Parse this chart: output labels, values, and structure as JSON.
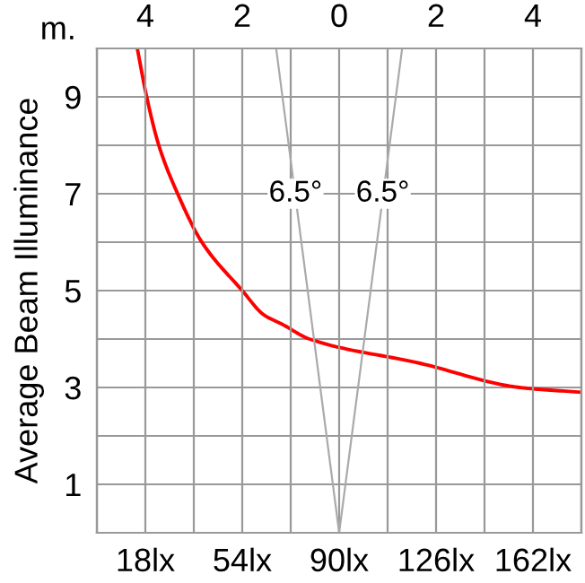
{
  "chart_data": {
    "type": "line",
    "ylabel": "Average Beam Illuminance",
    "x2label": "m.",
    "xlim": [
      0,
      180
    ],
    "xticks": [
      {
        "value": 18,
        "label": "18lx"
      },
      {
        "value": 54,
        "label": "54lx"
      },
      {
        "value": 90,
        "label": "90lx"
      },
      {
        "value": 126,
        "label": "126lx"
      },
      {
        "value": 162,
        "label": "162lx"
      }
    ],
    "x2lim": [
      -5,
      5
    ],
    "x2ticks": [
      {
        "value": -5,
        "label": null
      },
      {
        "value": -4,
        "label": "4"
      },
      {
        "value": -3,
        "label": null
      },
      {
        "value": -2,
        "label": "2"
      },
      {
        "value": -1,
        "label": null
      },
      {
        "value": 0,
        "label": "0"
      },
      {
        "value": 1,
        "label": null
      },
      {
        "value": 2,
        "label": "2"
      },
      {
        "value": 3,
        "label": null
      },
      {
        "value": 4,
        "label": "4"
      },
      {
        "value": 5,
        "label": null
      }
    ],
    "ylim": [
      0,
      10
    ],
    "yticks": [
      {
        "value": 0,
        "label": null
      },
      1,
      {
        "value": 2,
        "label": null
      },
      3,
      {
        "value": 4,
        "label": null
      },
      5,
      {
        "value": 6,
        "label": null
      },
      7,
      {
        "value": 8,
        "label": null
      },
      9,
      {
        "value": 10,
        "label": null
      }
    ],
    "grid": true,
    "series": [
      {
        "color": "#ff0000",
        "x": [
          15,
          18.5,
          23,
          30,
          39,
          54,
          62,
          69,
          79,
          120,
          157,
          180
        ],
        "values": [
          10,
          9,
          8,
          7,
          6,
          5,
          4.5,
          4.3,
          4,
          3.5,
          3,
          2.9
        ]
      },
      {
        "axis": "x2",
        "color": "#aaaaaa",
        "x": [
          -1.3,
          0,
          1.3
        ],
        "values": [
          10,
          0,
          10
        ]
      }
    ],
    "annotations": [
      "6.5°",
      "6.5°"
    ]
  }
}
